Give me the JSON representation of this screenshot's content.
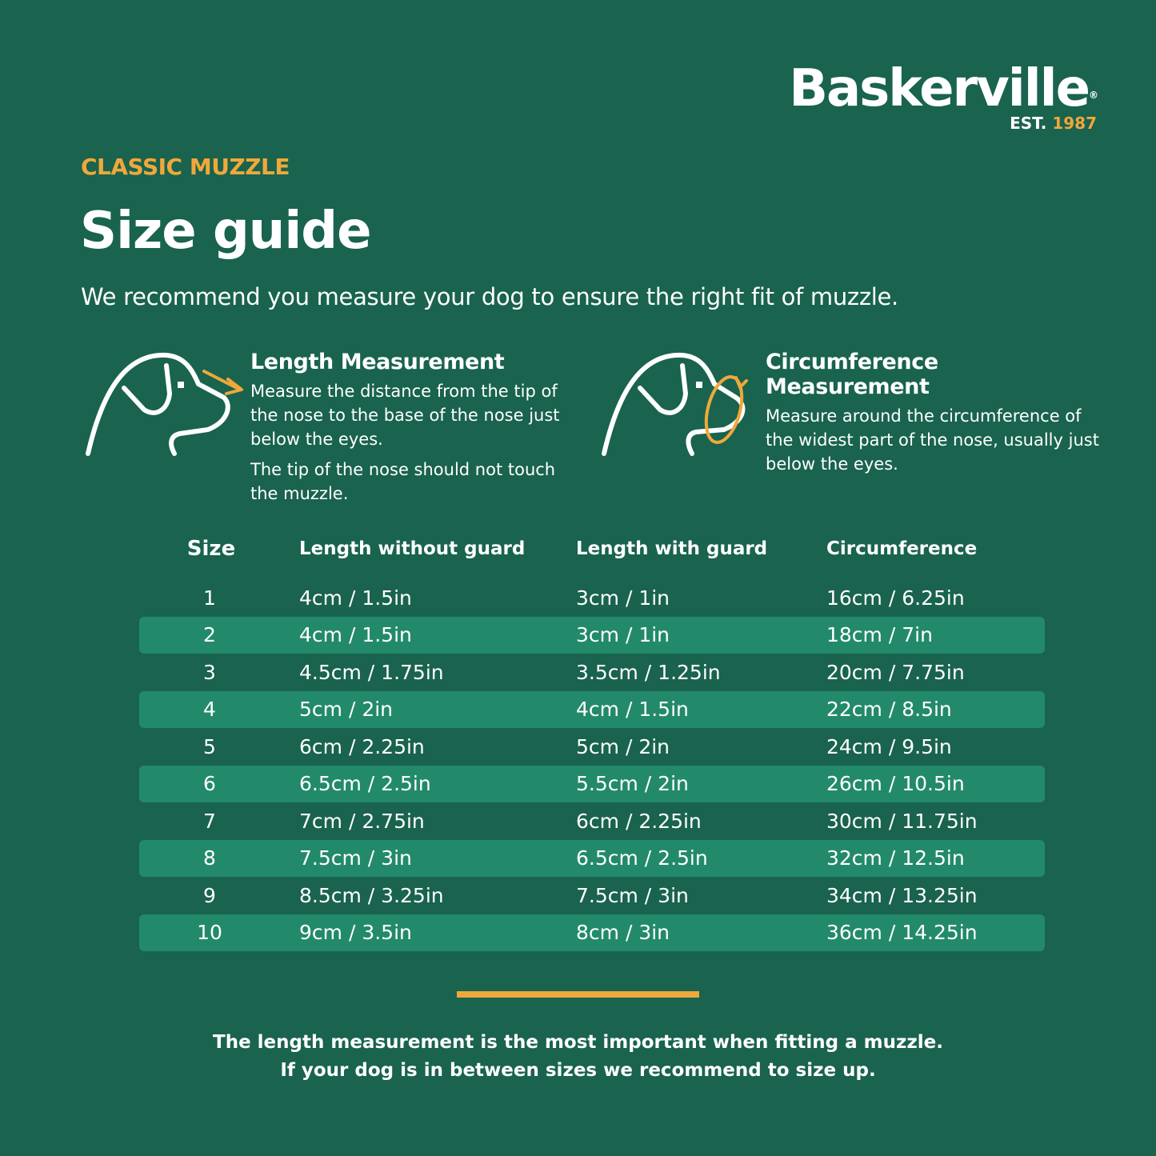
{
  "brand": {
    "name": "Baskerville",
    "registered": "®",
    "est_label": "EST.",
    "est_year": "1987"
  },
  "colors": {
    "background": "#19634f",
    "row_highlight": "#228a6a",
    "accent": "#f0a83a",
    "text": "#ffffff"
  },
  "header": {
    "eyebrow": "CLASSIC MUZZLE",
    "title": "Size guide",
    "intro": "We recommend you measure your dog to ensure the right fit of muzzle."
  },
  "measurements": [
    {
      "icon": "dog-length-icon",
      "title": "Length Measurement",
      "text": "Measure the distance from the tip of the nose to the base of the nose just below the eyes.",
      "note": "The tip of the nose should not touch the muzzle."
    },
    {
      "icon": "dog-circumference-icon",
      "title": "Circumference Measurement",
      "text": "Measure around the circumference of the widest part of the nose, usually just below the eyes."
    }
  ],
  "table": {
    "headers": [
      "Size",
      "Length without guard",
      "Length with guard",
      "Circumference"
    ],
    "rows": [
      [
        "1",
        "4cm / 1.5in",
        "3cm / 1in",
        "16cm / 6.25in"
      ],
      [
        "2",
        "4cm / 1.5in",
        "3cm / 1in",
        "18cm / 7in"
      ],
      [
        "3",
        "4.5cm / 1.75in",
        "3.5cm / 1.25in",
        "20cm / 7.75in"
      ],
      [
        "4",
        "5cm / 2in",
        "4cm / 1.5in",
        "22cm / 8.5in"
      ],
      [
        "5",
        "6cm / 2.25in",
        "5cm / 2in",
        "24cm / 9.5in"
      ],
      [
        "6",
        "6.5cm / 2.5in",
        "5.5cm / 2in",
        "26cm / 10.5in"
      ],
      [
        "7",
        "7cm / 2.75in",
        "6cm / 2.25in",
        "30cm / 11.75in"
      ],
      [
        "8",
        "7.5cm / 3in",
        "6.5cm / 2.5in",
        "32cm / 12.5in"
      ],
      [
        "9",
        "8.5cm / 3.25in",
        "7.5cm / 3in",
        "34cm / 13.25in"
      ],
      [
        "10",
        "9cm / 3.5in",
        "8cm / 3in",
        "36cm / 14.25in"
      ]
    ]
  },
  "footer": {
    "line1": "The length measurement is the most important when fitting a muzzle.",
    "line2": "If your dog is in between sizes we recommend to size up."
  }
}
